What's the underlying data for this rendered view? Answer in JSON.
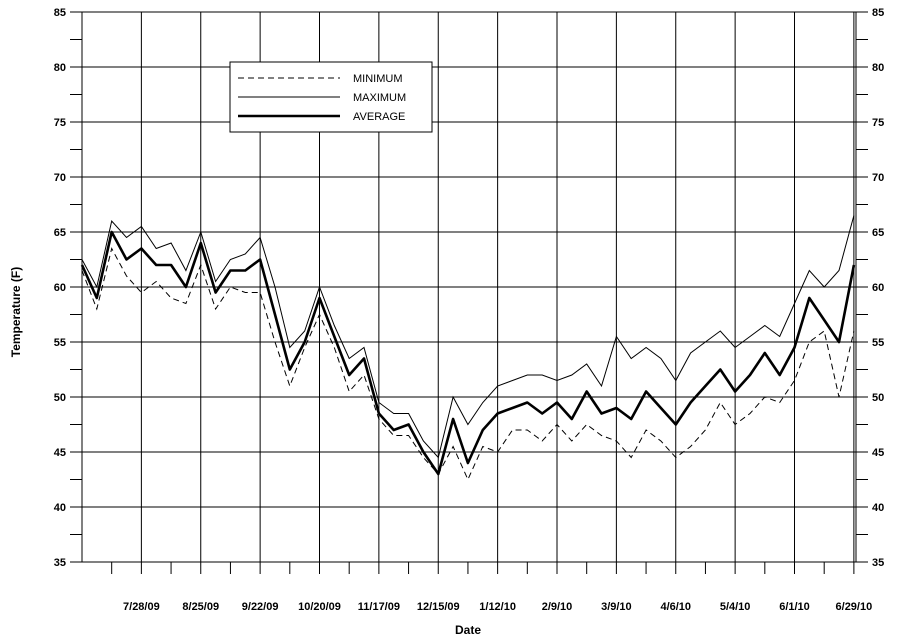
{
  "chart_data": {
    "type": "line",
    "title": "",
    "xlabel": "Date",
    "ylabel": "Temperature  (F)",
    "x_start": "2009-06-30",
    "x_end": "2010-06-30",
    "ylim": [
      35,
      85
    ],
    "y_major_ticks": [
      35,
      40,
      45,
      50,
      55,
      60,
      65,
      70,
      75,
      80,
      85
    ],
    "x_ticks": [
      {
        "date": "2009-07-28",
        "label": "7/28/09"
      },
      {
        "date": "2009-08-25",
        "label": "8/25/09"
      },
      {
        "date": "2009-09-22",
        "label": "9/22/09"
      },
      {
        "date": "2009-10-20",
        "label": "10/20/09"
      },
      {
        "date": "2009-11-17",
        "label": "11/17/09"
      },
      {
        "date": "2009-12-15",
        "label": "12/15/09"
      },
      {
        "date": "2010-01-12",
        "label": "1/12/10"
      },
      {
        "date": "2010-02-09",
        "label": "2/9/10"
      },
      {
        "date": "2010-03-09",
        "label": "3/9/10"
      },
      {
        "date": "2010-04-06",
        "label": "4/6/10"
      },
      {
        "date": "2010-05-04",
        "label": "5/4/10"
      },
      {
        "date": "2010-06-01",
        "label": "6/1/10"
      },
      {
        "date": "2010-06-29",
        "label": "6/29/10"
      }
    ],
    "grid": true,
    "right_axis_mirrored": true,
    "legend_position": "top-left",
    "series": [
      {
        "name": "MINIMUM",
        "style": "dashed",
        "x": [
          "2009-06-30",
          "2009-07-07",
          "2009-07-14",
          "2009-07-21",
          "2009-07-28",
          "2009-08-04",
          "2009-08-11",
          "2009-08-18",
          "2009-08-25",
          "2009-09-01",
          "2009-09-08",
          "2009-09-15",
          "2009-09-22",
          "2009-09-29",
          "2009-10-06",
          "2009-10-13",
          "2009-10-20",
          "2009-10-27",
          "2009-11-03",
          "2009-11-10",
          "2009-11-17",
          "2009-11-24",
          "2009-12-01",
          "2009-12-08",
          "2009-12-15",
          "2009-12-22",
          "2009-12-29",
          "2010-01-05",
          "2010-01-12",
          "2010-01-19",
          "2010-01-26",
          "2010-02-02",
          "2010-02-09",
          "2010-02-16",
          "2010-02-23",
          "2010-03-02",
          "2010-03-09",
          "2010-03-16",
          "2010-03-23",
          "2010-03-30",
          "2010-04-06",
          "2010-04-13",
          "2010-04-20",
          "2010-04-27",
          "2010-05-04",
          "2010-05-11",
          "2010-05-18",
          "2010-05-25",
          "2010-06-01",
          "2010-06-08",
          "2010-06-15",
          "2010-06-22",
          "2010-06-29"
        ],
        "values": [
          61.5,
          58.0,
          63.5,
          61.0,
          59.5,
          60.5,
          59.0,
          58.5,
          62.0,
          58.0,
          60.0,
          59.5,
          59.5,
          55.0,
          51.0,
          54.5,
          57.5,
          54.5,
          50.5,
          52.0,
          48.0,
          46.5,
          46.5,
          44.5,
          43.0,
          45.5,
          42.5,
          45.5,
          45.0,
          47.0,
          47.0,
          46.0,
          47.5,
          46.0,
          47.5,
          46.5,
          46.0,
          44.5,
          47.0,
          46.0,
          44.5,
          45.5,
          47.0,
          49.5,
          47.5,
          48.5,
          50.0,
          49.5,
          51.5,
          55.0,
          56.0,
          50.0,
          56.0
        ]
      },
      {
        "name": "MAXIMUM",
        "style": "thin",
        "x": [
          "2009-06-30",
          "2009-07-07",
          "2009-07-14",
          "2009-07-21",
          "2009-07-28",
          "2009-08-04",
          "2009-08-11",
          "2009-08-18",
          "2009-08-25",
          "2009-09-01",
          "2009-09-08",
          "2009-09-15",
          "2009-09-22",
          "2009-09-29",
          "2009-10-06",
          "2009-10-13",
          "2009-10-20",
          "2009-10-27",
          "2009-11-03",
          "2009-11-10",
          "2009-11-17",
          "2009-11-24",
          "2009-12-01",
          "2009-12-08",
          "2009-12-15",
          "2009-12-22",
          "2009-12-29",
          "2010-01-05",
          "2010-01-12",
          "2010-01-19",
          "2010-01-26",
          "2010-02-02",
          "2010-02-09",
          "2010-02-16",
          "2010-02-23",
          "2010-03-02",
          "2010-03-09",
          "2010-03-16",
          "2010-03-23",
          "2010-03-30",
          "2010-04-06",
          "2010-04-13",
          "2010-04-20",
          "2010-04-27",
          "2010-05-04",
          "2010-05-11",
          "2010-05-18",
          "2010-05-25",
          "2010-06-01",
          "2010-06-08",
          "2010-06-15",
          "2010-06-22",
          "2010-06-29"
        ],
        "values": [
          62.5,
          60.0,
          66.0,
          64.5,
          65.5,
          63.5,
          64.0,
          61.5,
          65.0,
          60.5,
          62.5,
          63.0,
          64.5,
          60.0,
          54.5,
          56.0,
          60.0,
          56.5,
          53.5,
          54.5,
          49.5,
          48.5,
          48.5,
          46.0,
          44.5,
          50.0,
          47.5,
          49.5,
          51.0,
          51.5,
          52.0,
          52.0,
          51.5,
          52.0,
          53.0,
          51.0,
          55.5,
          53.5,
          54.5,
          53.5,
          51.5,
          54.0,
          55.0,
          56.0,
          54.5,
          55.5,
          56.5,
          55.5,
          58.5,
          61.5,
          60.0,
          61.5,
          66.5
        ]
      },
      {
        "name": "AVERAGE",
        "style": "bold",
        "x": [
          "2009-06-30",
          "2009-07-07",
          "2009-07-14",
          "2009-07-21",
          "2009-07-28",
          "2009-08-04",
          "2009-08-11",
          "2009-08-18",
          "2009-08-25",
          "2009-09-01",
          "2009-09-08",
          "2009-09-15",
          "2009-09-22",
          "2009-09-29",
          "2009-10-06",
          "2009-10-13",
          "2009-10-20",
          "2009-10-27",
          "2009-11-03",
          "2009-11-10",
          "2009-11-17",
          "2009-11-24",
          "2009-12-01",
          "2009-12-08",
          "2009-12-15",
          "2009-12-22",
          "2009-12-29",
          "2010-01-05",
          "2010-01-12",
          "2010-01-19",
          "2010-01-26",
          "2010-02-02",
          "2010-02-09",
          "2010-02-16",
          "2010-02-23",
          "2010-03-02",
          "2010-03-09",
          "2010-03-16",
          "2010-03-23",
          "2010-03-30",
          "2010-04-06",
          "2010-04-13",
          "2010-04-20",
          "2010-04-27",
          "2010-05-04",
          "2010-05-11",
          "2010-05-18",
          "2010-05-25",
          "2010-06-01",
          "2010-06-08",
          "2010-06-15",
          "2010-06-22",
          "2010-06-29"
        ],
        "values": [
          62.0,
          59.0,
          65.0,
          62.5,
          63.5,
          62.0,
          62.0,
          60.0,
          64.0,
          59.5,
          61.5,
          61.5,
          62.5,
          57.5,
          52.5,
          55.0,
          59.0,
          55.5,
          52.0,
          53.5,
          48.5,
          47.0,
          47.5,
          45.0,
          43.0,
          48.0,
          44.0,
          47.0,
          48.5,
          49.0,
          49.5,
          48.5,
          49.5,
          48.0,
          50.5,
          48.5,
          49.0,
          48.0,
          50.5,
          49.0,
          47.5,
          49.5,
          51.0,
          52.5,
          50.5,
          52.0,
          54.0,
          52.0,
          54.5,
          59.0,
          57.0,
          55.0,
          62.0
        ]
      }
    ]
  }
}
